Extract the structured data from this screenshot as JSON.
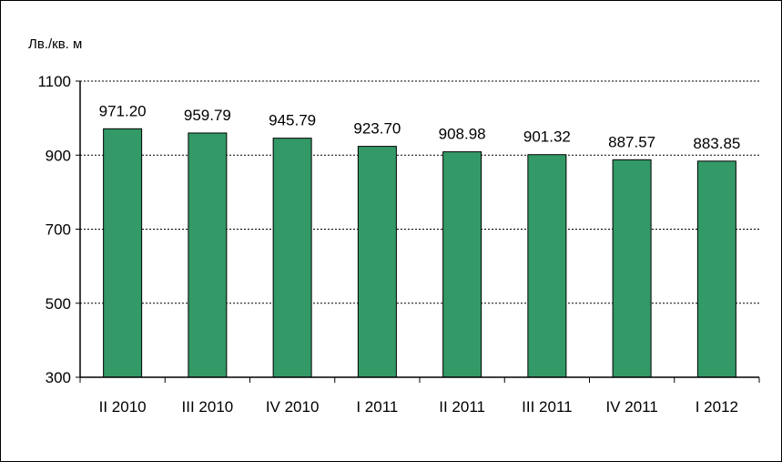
{
  "chart_data": {
    "type": "bar",
    "unit_label": "Лв./кв. м",
    "categories": [
      "II 2010",
      "III 2010",
      "IV 2010",
      "I 2011",
      "II 2011",
      "III 2011",
      "IV 2011",
      "I 2012"
    ],
    "values": [
      971.2,
      959.79,
      945.79,
      923.7,
      908.98,
      901.32,
      887.57,
      883.85
    ],
    "value_labels": [
      "971.20",
      "959.79",
      "945.79",
      "923.70",
      "908.98",
      "901.32",
      "887.57",
      "883.85"
    ],
    "ylim": [
      300,
      1100
    ],
    "yticks": [
      300,
      500,
      700,
      900,
      1100
    ],
    "grid": true,
    "legend": "none",
    "colors": {
      "bar_fill": "#339966",
      "bar_stroke": "#000000",
      "gridline": "#000000",
      "axis": "#000000"
    }
  }
}
